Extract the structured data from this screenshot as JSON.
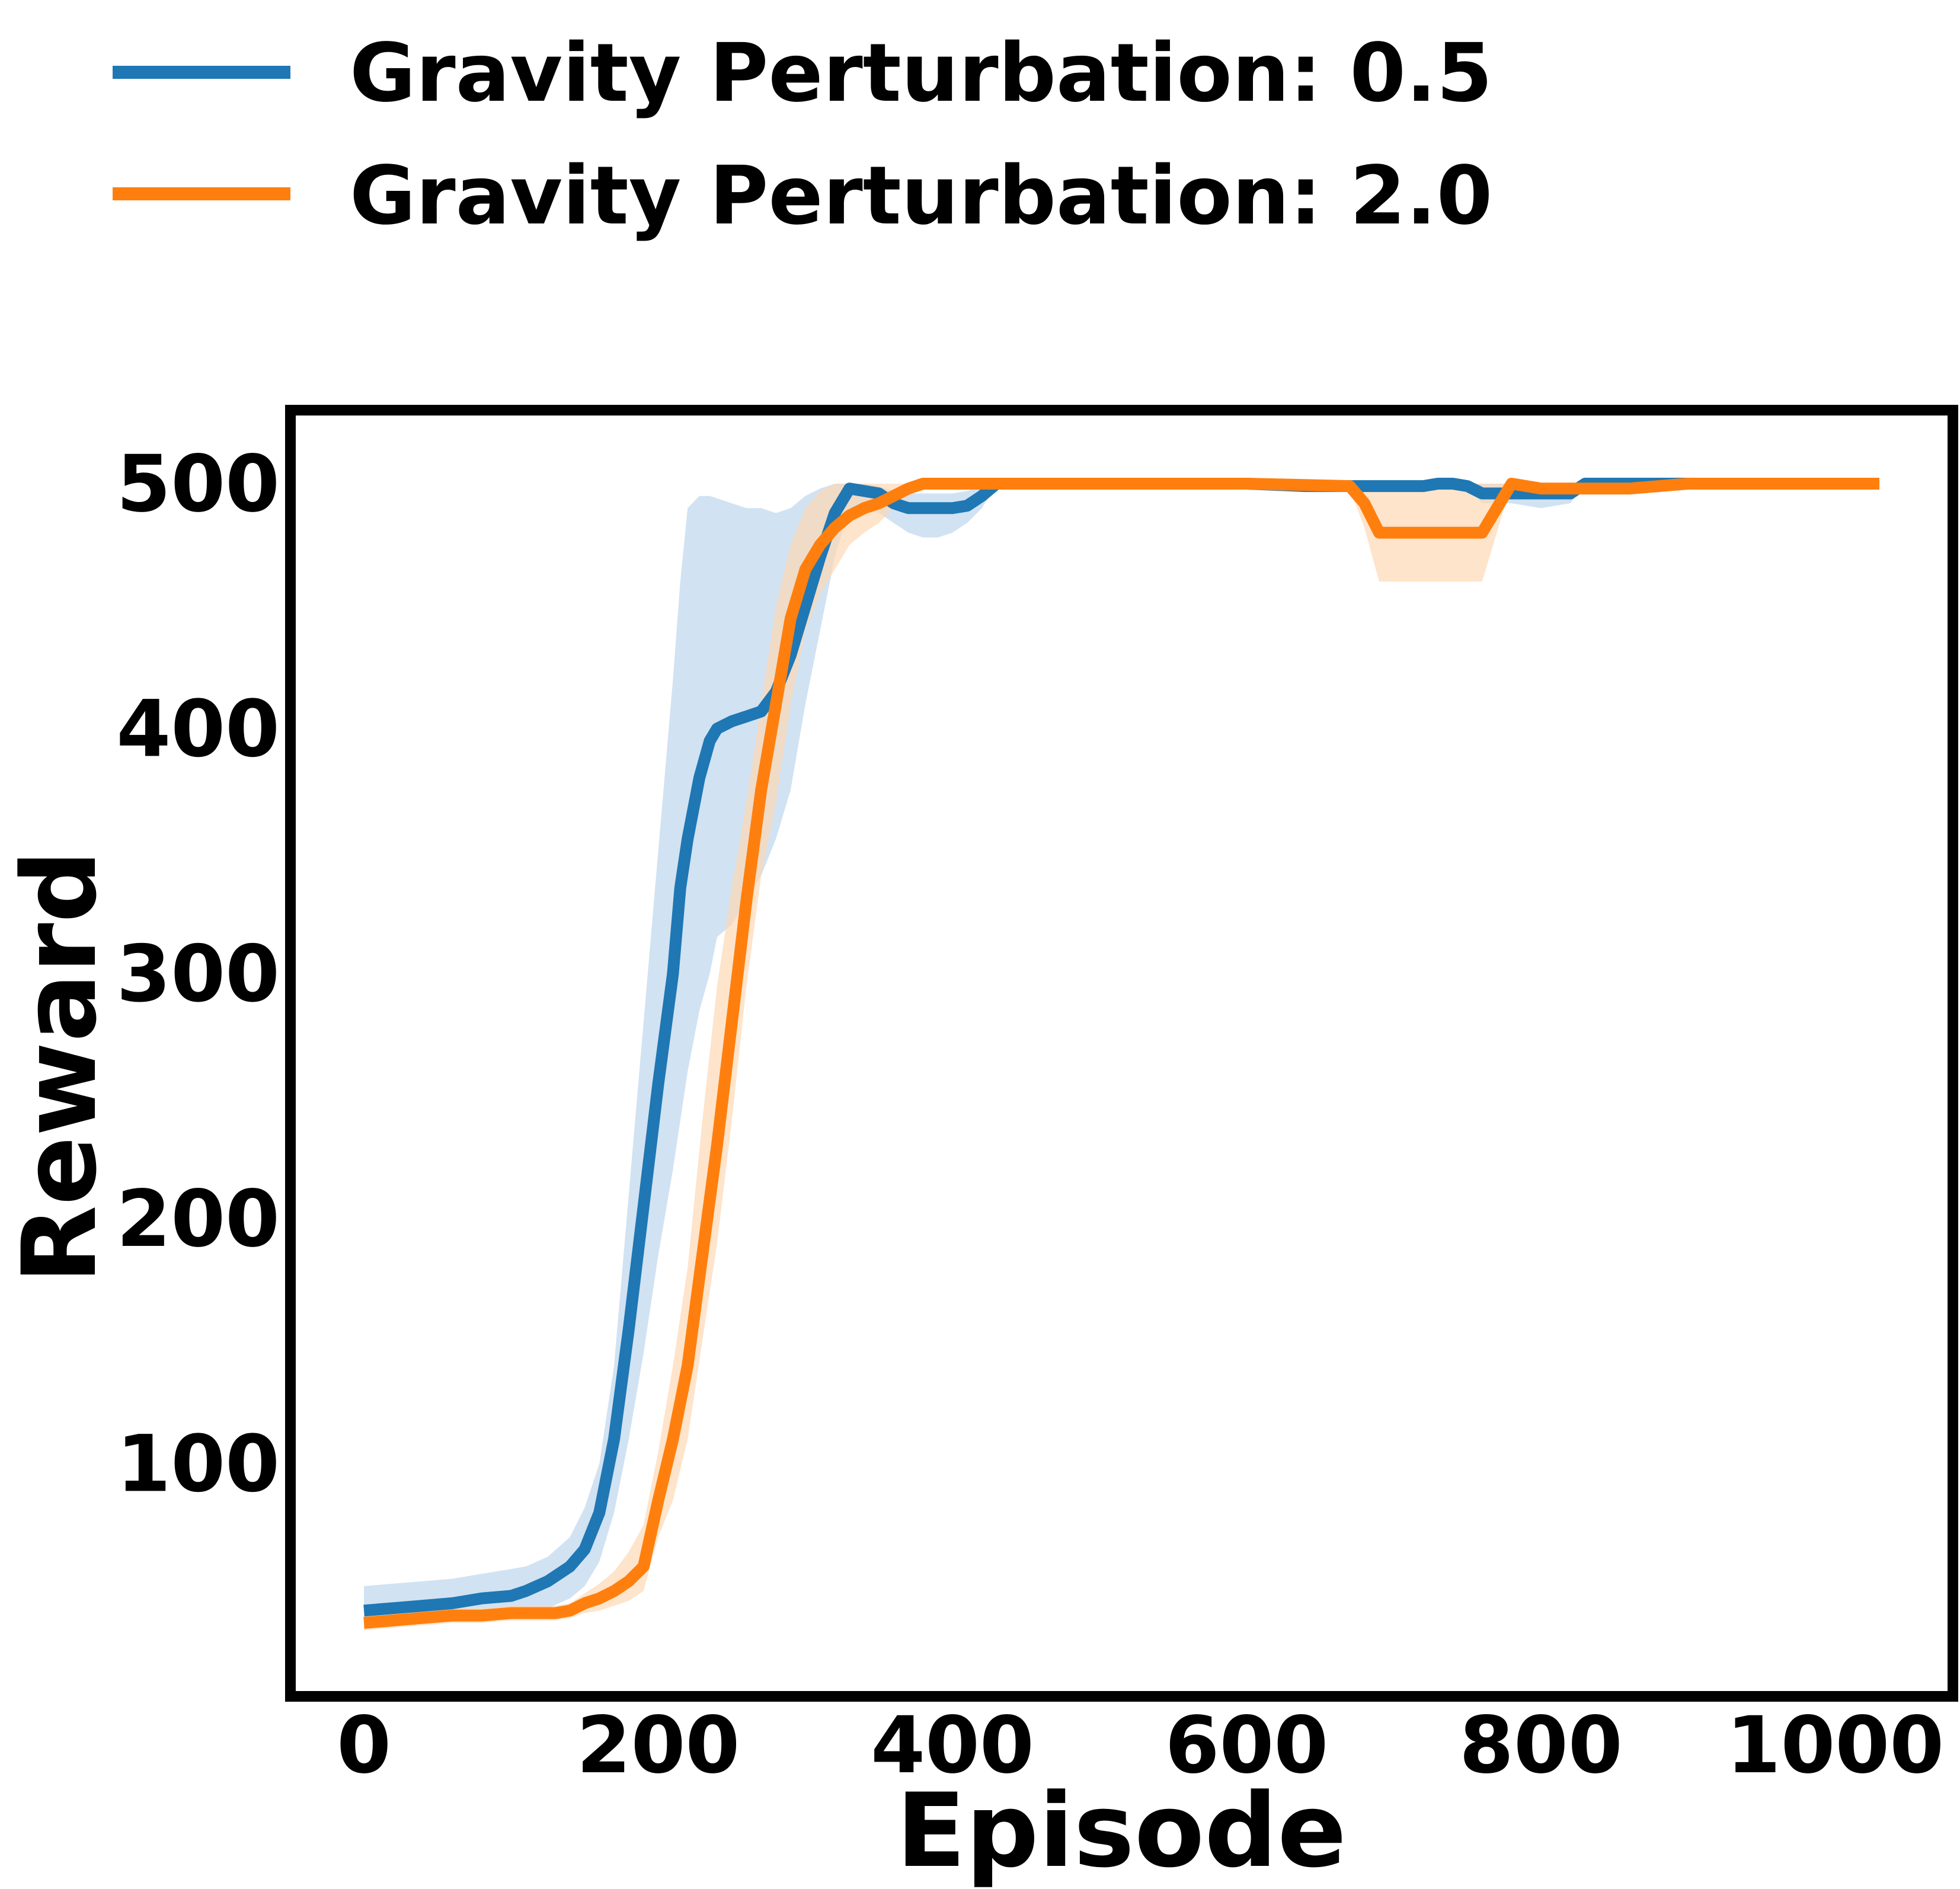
{
  "chart_data": {
    "type": "line",
    "xlabel": "Episode",
    "ylabel": "Reward",
    "xlim": [
      -50,
      1080
    ],
    "ylim": [
      5,
      530
    ],
    "xticks": [
      0,
      200,
      400,
      600,
      800,
      1000
    ],
    "yticks": [
      100,
      200,
      300,
      400,
      500
    ],
    "legend_position": "top-left",
    "grid": false,
    "series": [
      {
        "name": "Gravity Perturbation: 0.5",
        "color": "#1f77b4",
        "band_color": "#c6dbef",
        "x": [
          0,
          20,
          40,
          60,
          80,
          100,
          110,
          125,
          140,
          150,
          160,
          170,
          180,
          190,
          200,
          210,
          215,
          220,
          228,
          235,
          240,
          250,
          260,
          270,
          280,
          290,
          300,
          310,
          320,
          330,
          340,
          350,
          360,
          370,
          380,
          390,
          400,
          410,
          420,
          430,
          440,
          450,
          460,
          500,
          600,
          640,
          680,
          710,
          720,
          730,
          740,
          750,
          760,
          780,
          800,
          820,
          830,
          860,
          900,
          1000,
          1030
        ],
        "y": [
          40,
          41,
          42,
          43,
          45,
          46,
          48,
          52,
          58,
          65,
          80,
          110,
          155,
          205,
          255,
          300,
          335,
          355,
          380,
          395,
          400,
          403,
          405,
          407,
          415,
          430,
          450,
          470,
          488,
          498,
          497,
          496,
          492,
          490,
          490,
          490,
          490,
          491,
          495,
          500,
          500,
          500,
          500,
          500,
          500,
          499,
          499,
          499,
          499,
          500,
          500,
          499,
          496,
          496,
          496,
          496,
          500,
          500,
          500,
          500,
          500
        ],
        "upper": [
          50,
          51,
          52,
          53,
          55,
          57,
          58,
          62,
          70,
          82,
          100,
          140,
          210,
          280,
          350,
          420,
          460,
          490,
          495,
          495,
          494,
          492,
          490,
          490,
          488,
          490,
          495,
          498,
          500,
          500,
          500,
          499,
          497,
          496,
          496,
          496,
          496,
          497,
          499,
          500,
          500,
          500,
          500,
          500,
          500,
          500,
          500,
          500,
          500,
          500,
          500,
          500,
          500,
          500,
          500,
          500,
          500,
          500,
          500,
          500,
          500
        ],
        "lower": [
          33,
          34,
          35,
          36,
          37,
          38,
          39,
          41,
          45,
          50,
          60,
          80,
          110,
          145,
          185,
          220,
          240,
          260,
          285,
          300,
          315,
          320,
          330,
          340,
          355,
          375,
          410,
          440,
          470,
          490,
          490,
          488,
          484,
          480,
          478,
          478,
          480,
          484,
          490,
          500,
          500,
          500,
          500,
          500,
          500,
          498,
          498,
          498,
          498,
          500,
          500,
          498,
          492,
          492,
          490,
          492,
          500,
          500,
          500,
          500,
          500
        ]
      },
      {
        "name": "Gravity Perturbation: 2.0",
        "color": "#ff7f0e",
        "band_color": "#fdd9b5",
        "x": [
          0,
          20,
          40,
          60,
          80,
          100,
          120,
          130,
          140,
          150,
          160,
          170,
          180,
          190,
          200,
          210,
          220,
          230,
          240,
          250,
          260,
          270,
          280,
          290,
          300,
          310,
          320,
          330,
          340,
          350,
          360,
          370,
          380,
          400,
          500,
          600,
          670,
          680,
          690,
          700,
          740,
          750,
          760,
          770,
          780,
          800,
          860,
          900,
          1000,
          1030
        ],
        "y": [
          35,
          36,
          37,
          38,
          38,
          39,
          39,
          39,
          40,
          43,
          45,
          48,
          52,
          58,
          85,
          110,
          140,
          185,
          230,
          280,
          330,
          375,
          410,
          445,
          465,
          475,
          482,
          487,
          490,
          492,
          495,
          498,
          500,
          500,
          500,
          500,
          499,
          492,
          480,
          480,
          480,
          480,
          480,
          490,
          500,
          498,
          498,
          500,
          500,
          500
        ],
        "upper": [
          38,
          39,
          40,
          41,
          41,
          42,
          42,
          42,
          43,
          47,
          51,
          56,
          64,
          75,
          105,
          140,
          180,
          240,
          295,
          335,
          370,
          410,
          450,
          475,
          490,
          497,
          500,
          500,
          500,
          500,
          500,
          500,
          500,
          500,
          500,
          500,
          500,
          500,
          500,
          500,
          500,
          500,
          500,
          500,
          500,
          500,
          500,
          500,
          500,
          500
        ],
        "lower": [
          32,
          33,
          34,
          35,
          35,
          36,
          36,
          36,
          37,
          39,
          40,
          42,
          44,
          48,
          70,
          85,
          110,
          150,
          190,
          240,
          295,
          340,
          370,
          410,
          440,
          455,
          465,
          475,
          480,
          484,
          490,
          495,
          500,
          500,
          500,
          500,
          498,
          482,
          460,
          460,
          460,
          460,
          460,
          480,
          500,
          496,
          496,
          500,
          500,
          500
        ]
      }
    ]
  }
}
